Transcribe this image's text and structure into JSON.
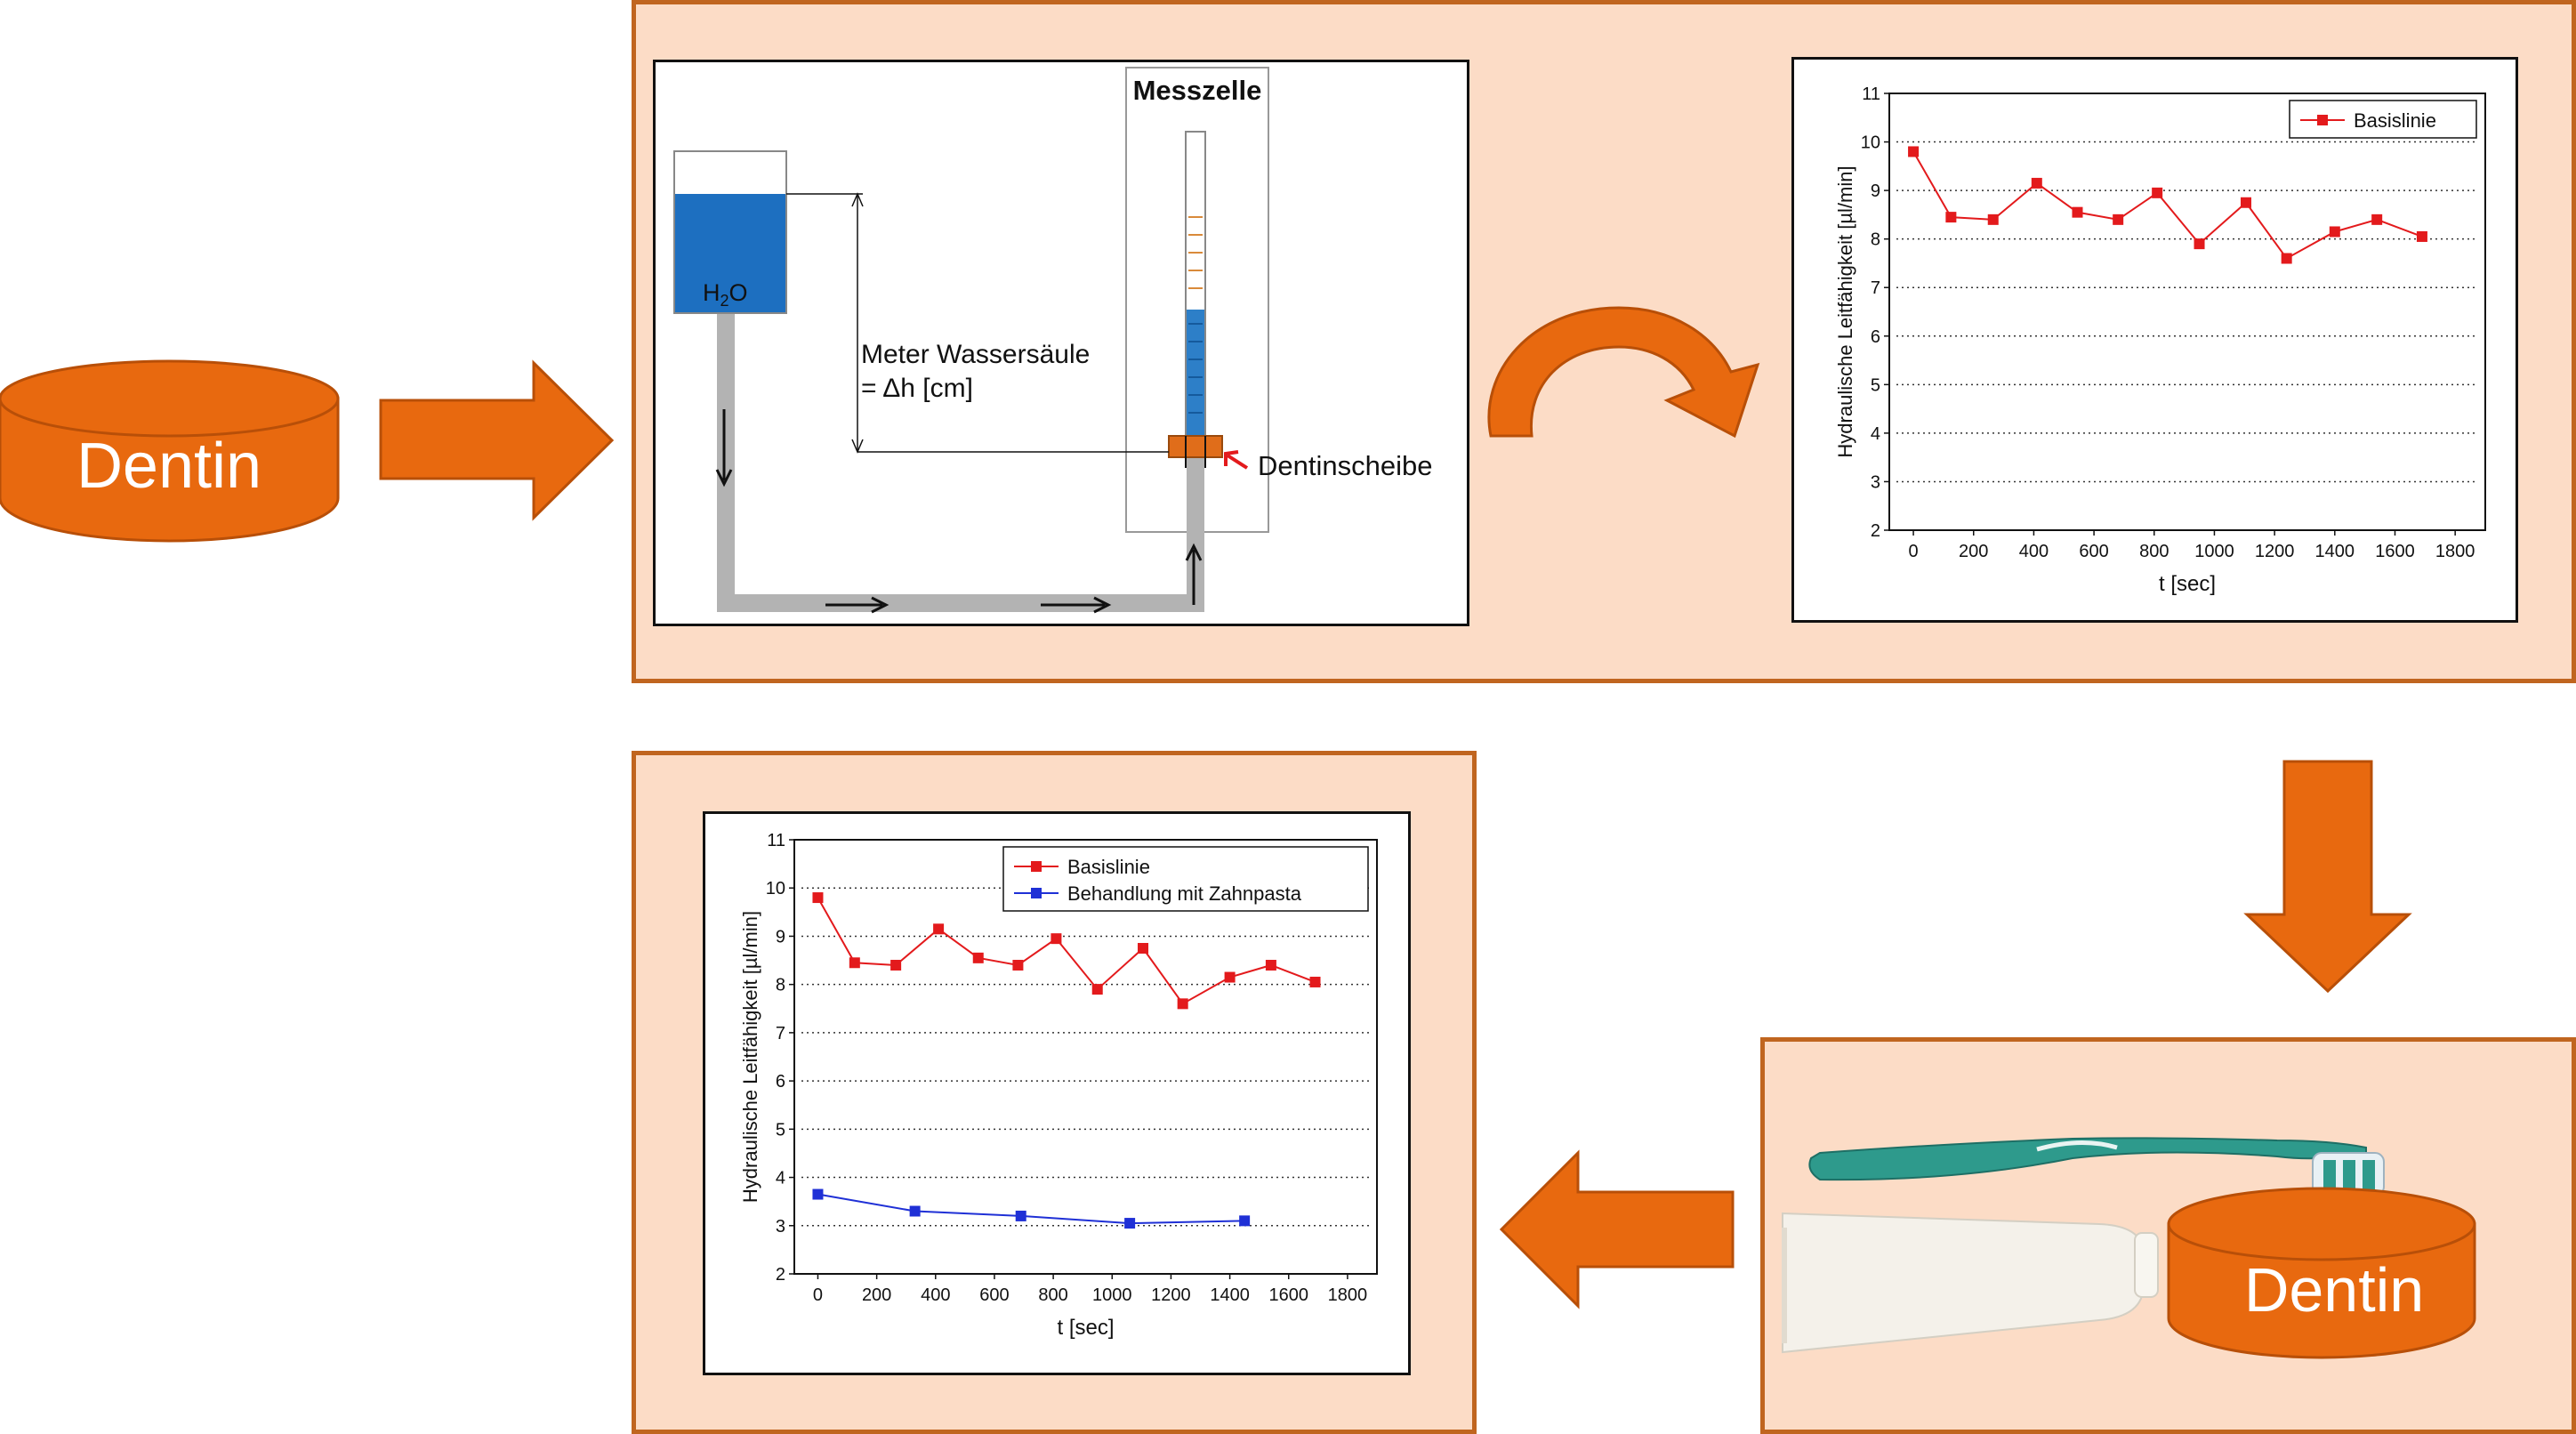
{
  "colors": {
    "orange": "#e8690f",
    "orange_dark": "#b84f08",
    "panel_bg": "#fcdcc6",
    "panel_border": "#c0651f",
    "water": "#1d6fc0",
    "pipe": "#b3b3b3",
    "series_red": "#e31a1c",
    "series_blue": "#1f30d6"
  },
  "dentin_left": {
    "label": "Dentin"
  },
  "dentin_right": {
    "label": "Dentin"
  },
  "apparatus": {
    "messzelle_label": "Messzelle",
    "water_label": "H",
    "water_label_sub": "2",
    "water_label_end": "O",
    "column_label_line1": "Meter Wassersäule",
    "column_label_line2": "= Δh [cm]",
    "disc_label": "Dentinscheibe"
  },
  "icons": {
    "arrow_right": "arrow-right-icon",
    "arrow_down": "arrow-down-icon",
    "arrow_left": "arrow-left-icon",
    "curved_arrow": "curved-arrow-icon",
    "toothbrush": "toothbrush-icon",
    "toothpaste": "toothpaste-tube-icon"
  },
  "chart_data": [
    {
      "type": "line",
      "xlabel": "t [sec]",
      "ylabel": "Hydraulische Leitfähigkeit [µl/min]",
      "xlim": [
        -80,
        1900
      ],
      "ylim": [
        2,
        11
      ],
      "xticks": [
        "0",
        "200",
        "400",
        "600",
        "800",
        "1000",
        "1200",
        "1400",
        "1600",
        "1800"
      ],
      "yticks": [
        "2",
        "3",
        "4",
        "5",
        "6",
        "7",
        "8",
        "9",
        "10",
        "11"
      ],
      "grid": "dotted horizontal",
      "legend": "top-right",
      "series": [
        {
          "name": "Basislinie",
          "color": "#e31a1c",
          "x": [
            0,
            125,
            265,
            410,
            545,
            680,
            810,
            950,
            1105,
            1240,
            1400,
            1540,
            1690
          ],
          "y": [
            9.8,
            8.45,
            8.4,
            9.15,
            8.55,
            8.4,
            8.95,
            7.9,
            8.75,
            7.6,
            8.15,
            8.4,
            8.05
          ]
        }
      ]
    },
    {
      "type": "line",
      "xlabel": "t [sec]",
      "ylabel": "Hydraulische Leitfähigkeit [µl/min]",
      "xlim": [
        -80,
        1900
      ],
      "ylim": [
        2,
        11
      ],
      "xticks": [
        "0",
        "200",
        "400",
        "600",
        "800",
        "1000",
        "1200",
        "1400",
        "1600",
        "1800"
      ],
      "yticks": [
        "2",
        "3",
        "4",
        "5",
        "6",
        "7",
        "8",
        "9",
        "10",
        "11"
      ],
      "grid": "dotted horizontal",
      "legend": "top-right",
      "series": [
        {
          "name": "Basislinie",
          "color": "#e31a1c",
          "x": [
            0,
            125,
            265,
            410,
            545,
            680,
            810,
            950,
            1105,
            1240,
            1400,
            1540,
            1690
          ],
          "y": [
            9.8,
            8.45,
            8.4,
            9.15,
            8.55,
            8.4,
            8.95,
            7.9,
            8.75,
            7.6,
            8.15,
            8.4,
            8.05
          ]
        },
        {
          "name": "Behandlung mit Zahnpasta",
          "color": "#1f30d6",
          "x": [
            0,
            330,
            690,
            1060,
            1450
          ],
          "y": [
            3.65,
            3.3,
            3.2,
            3.05,
            3.1
          ]
        }
      ]
    }
  ]
}
